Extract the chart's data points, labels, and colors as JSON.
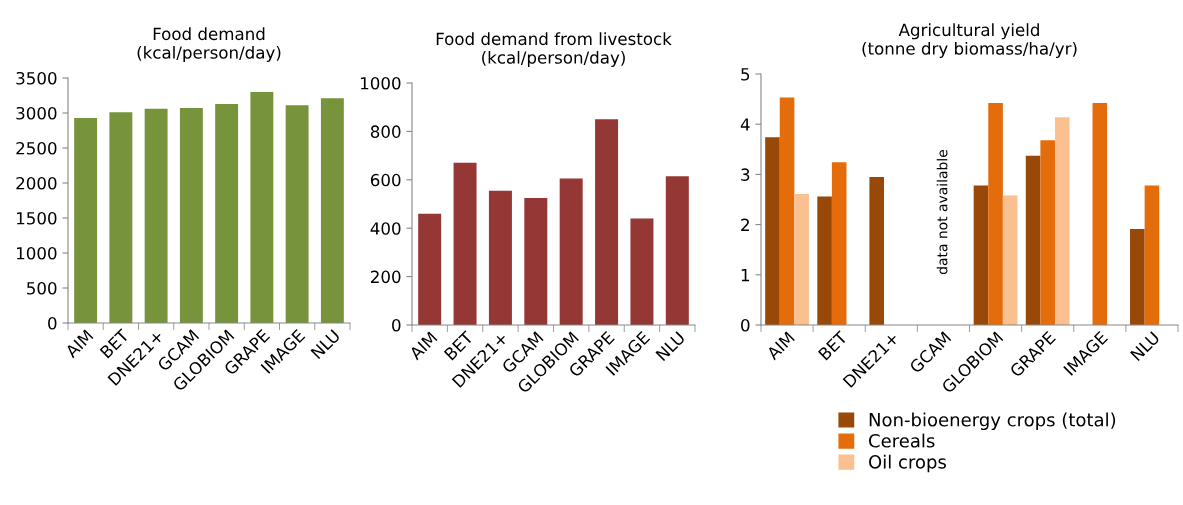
{
  "chart_data": [
    {
      "type": "bar",
      "title": "Food demand\n(kcal/person/day)",
      "categories": [
        "AIM",
        "BET",
        "DNE21+",
        "GCAM",
        "GLOBIOM",
        "GRAPE",
        "IMAGE",
        "NLU"
      ],
      "series": [
        {
          "color": "#77933c",
          "values": [
            2930,
            3010,
            3060,
            3070,
            3130,
            3300,
            3110,
            3210
          ]
        }
      ],
      "ylim": [
        0,
        3500
      ],
      "yticks": [
        0,
        500,
        1000,
        1500,
        2000,
        2500,
        3000,
        3500
      ],
      "grid": false,
      "legend": false
    },
    {
      "type": "bar",
      "title": "Food demand from livestock\n(kcal/person/day)",
      "categories": [
        "AIM",
        "BET",
        "DNE21+",
        "GCAM",
        "GLOBIOM",
        "GRAPE",
        "IMAGE",
        "NLU"
      ],
      "series": [
        {
          "color": "#953735",
          "values": [
            460,
            670,
            555,
            525,
            605,
            850,
            440,
            615
          ]
        }
      ],
      "ylim": [
        0,
        1000
      ],
      "yticks": [
        0,
        200,
        400,
        600,
        800,
        1000
      ],
      "grid": false,
      "legend": false
    },
    {
      "type": "bar",
      "title": "Agricultural yield\n(tonne dry biomass/ha/yr)",
      "categories": [
        "AIM",
        "BET",
        "DNE21+",
        "GCAM",
        "GLOBIOM",
        "GRAPE",
        "IMAGE",
        "NLU"
      ],
      "series": [
        {
          "name": "Non-bioenergy crops (total)",
          "color": "#984807",
          "values": [
            3.74,
            2.56,
            2.95,
            null,
            2.78,
            3.37,
            null,
            1.91
          ]
        },
        {
          "name": "Cereals",
          "color": "#e46c0a",
          "values": [
            4.53,
            3.24,
            null,
            null,
            4.42,
            3.68,
            4.42,
            2.78
          ]
        },
        {
          "name": "Oil crops",
          "color": "#fac090",
          "values": [
            2.61,
            null,
            null,
            null,
            2.58,
            4.14,
            null,
            null
          ]
        }
      ],
      "ylim": [
        0,
        5
      ],
      "yticks": [
        0,
        1,
        2,
        3,
        4,
        5
      ],
      "grid": false,
      "legend": "bottom right",
      "annotations": [
        "data not available"
      ]
    }
  ]
}
